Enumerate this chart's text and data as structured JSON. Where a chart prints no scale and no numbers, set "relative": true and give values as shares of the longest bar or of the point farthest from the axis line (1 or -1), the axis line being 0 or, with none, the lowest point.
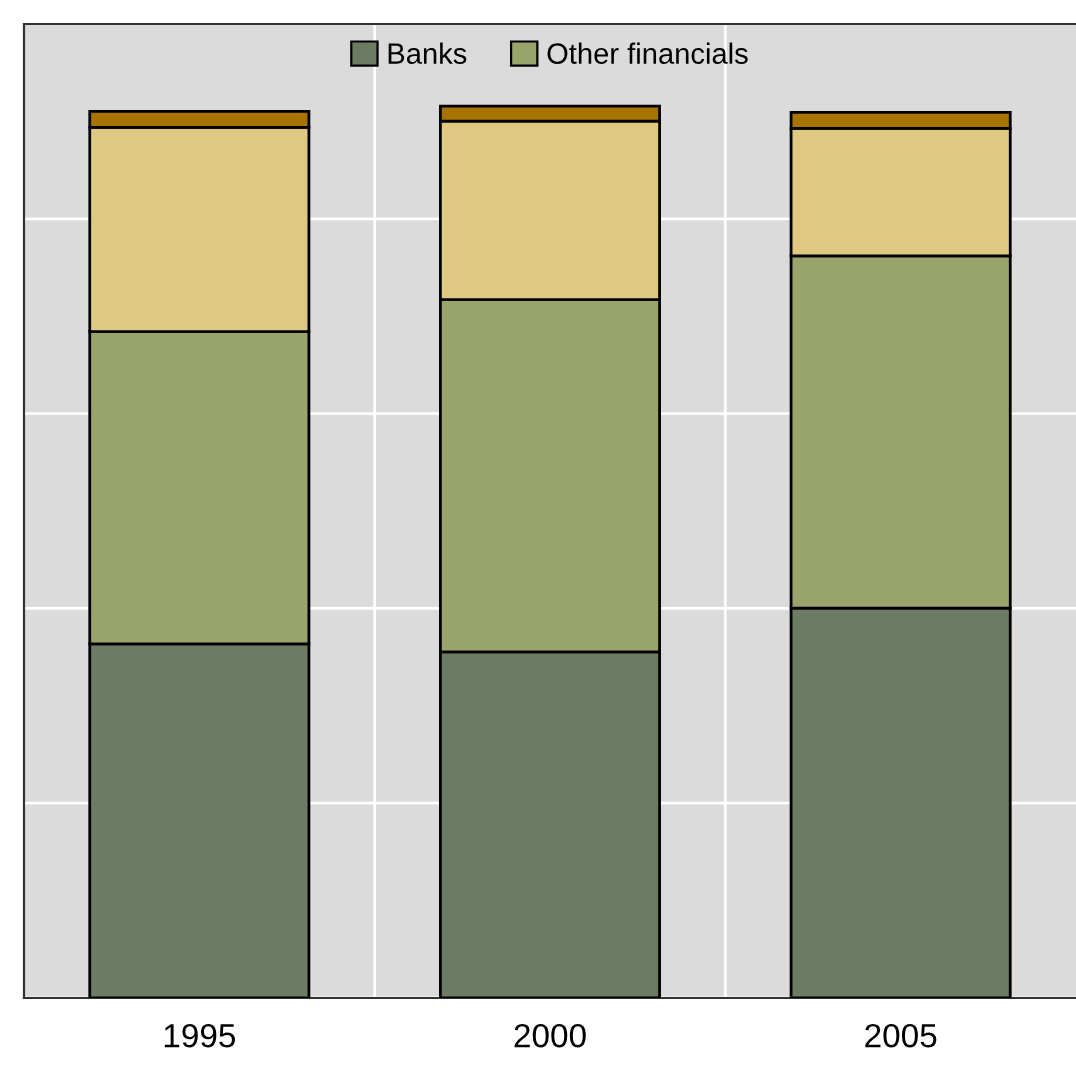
{
  "chart_data": {
    "type": "bar",
    "stacked": true,
    "relative": true,
    "categories": [
      "1995",
      "2000",
      "2005"
    ],
    "series": [
      {
        "name": "Banks",
        "color": "#6b7c63",
        "values": [
          0.397,
          0.388,
          0.437
        ]
      },
      {
        "name": "Other financials",
        "color": "#99a46b",
        "values": [
          0.35,
          0.395,
          0.395
        ]
      },
      {
        "color": "#dfc982",
        "values": [
          0.229,
          0.2,
          0.143
        ]
      },
      {
        "color": "#a87400",
        "values": [
          0.018,
          0.017,
          0.018
        ]
      }
    ],
    "grid": true,
    "legend": "top"
  }
}
